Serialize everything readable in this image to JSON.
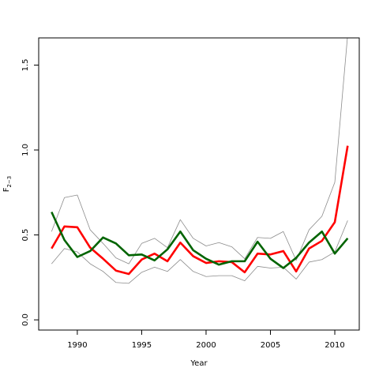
{
  "chart_data": {
    "type": "line",
    "xlabel": "Year",
    "ylabel": "F",
    "ylabel_sub": "2−3",
    "xlim": [
      1987.0,
      2011.9
    ],
    "ylim": [
      -0.06,
      1.66
    ],
    "x_ticks": [
      1990,
      1995,
      2000,
      2005,
      2010
    ],
    "y_ticks": [
      0.0,
      0.5,
      1.0,
      1.5
    ],
    "x_tick_labels": [
      "1990",
      "1995",
      "2000",
      "2005",
      "2010"
    ],
    "y_tick_labels": [
      "0.0",
      "0.5",
      "1.0",
      "1.5"
    ],
    "x": [
      1988,
      1989,
      1990,
      1991,
      1992,
      1993,
      1994,
      1995,
      1996,
      1997,
      1998,
      1999,
      2000,
      2001,
      2002,
      2003,
      2004,
      2005,
      2006,
      2007,
      2008,
      2009,
      2010,
      2011
    ],
    "series": [
      {
        "color": "#8c8c8c",
        "width": 0.8,
        "values": [
          0.52,
          0.72,
          0.735,
          0.53,
          0.45,
          0.365,
          0.33,
          0.45,
          0.48,
          0.425,
          0.59,
          0.48,
          0.435,
          0.455,
          0.43,
          0.36,
          0.485,
          0.48,
          0.52,
          0.35,
          0.53,
          0.61,
          0.81,
          1.68
        ]
      },
      {
        "color": "#8c8c8c",
        "width": 0.8,
        "values": [
          0.33,
          0.42,
          0.4,
          0.33,
          0.285,
          0.22,
          0.215,
          0.28,
          0.31,
          0.285,
          0.355,
          0.285,
          0.255,
          0.26,
          0.26,
          0.23,
          0.315,
          0.305,
          0.31,
          0.24,
          0.34,
          0.355,
          0.4,
          0.585
        ]
      },
      {
        "color": "#ff0000",
        "width": 2.6,
        "values": [
          0.42,
          0.55,
          0.545,
          0.425,
          0.36,
          0.29,
          0.27,
          0.355,
          0.39,
          0.345,
          0.455,
          0.375,
          0.335,
          0.345,
          0.34,
          0.28,
          0.39,
          0.385,
          0.405,
          0.285,
          0.42,
          0.465,
          0.575,
          1.025
        ]
      },
      {
        "color": "#006400",
        "width": 2.6,
        "values": [
          0.635,
          0.47,
          0.37,
          0.405,
          0.485,
          0.45,
          0.38,
          0.385,
          0.35,
          0.415,
          0.52,
          0.41,
          0.36,
          0.325,
          0.345,
          0.345,
          0.46,
          0.36,
          0.305,
          0.365,
          0.455,
          0.52,
          0.39,
          0.48
        ]
      }
    ]
  }
}
